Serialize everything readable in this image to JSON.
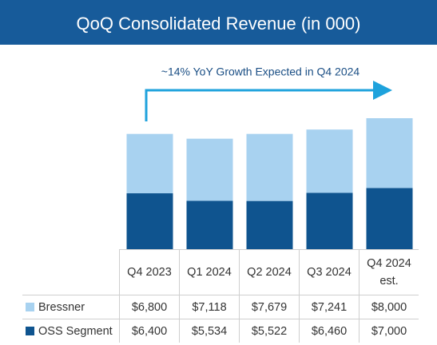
{
  "chart_data": {
    "type": "bar",
    "stacked": true,
    "title": "QoQ Consolidated Revenue (in 000)",
    "annotation": "~14% YoY Growth Expected in Q4 2024",
    "categories": [
      "Q4 2023",
      "Q1 2024",
      "Q2 2024",
      "Q3 2024",
      "Q4 2024 est."
    ],
    "series": [
      {
        "name": "Bressner",
        "color": "#a8d2f0",
        "values": [
          6800,
          7118,
          7679,
          7241,
          8000
        ],
        "value_labels": [
          "$6,800",
          "$7,118",
          "$7,679",
          "$7,241",
          "$8,000"
        ]
      },
      {
        "name": "OSS Segment",
        "color": "#0f548f",
        "values": [
          6400,
          5534,
          5522,
          6460,
          7000
        ],
        "value_labels": [
          "$6,400",
          "$5,534",
          "$5,522",
          "$6,460",
          "$7,000"
        ]
      }
    ]
  }
}
